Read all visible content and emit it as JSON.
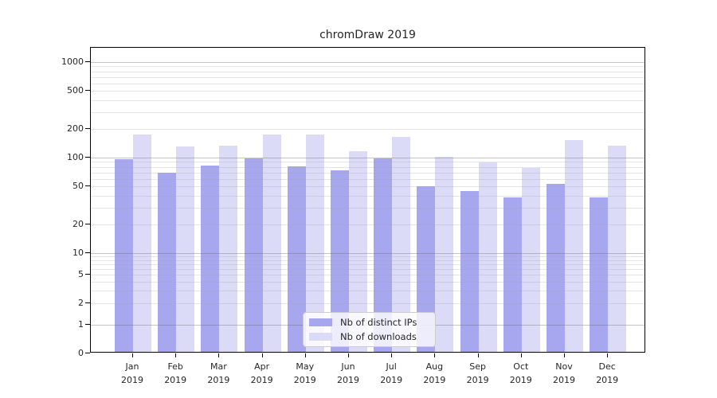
{
  "figure": {
    "background_color": "#ffffff",
    "text_color": "#262626",
    "axis_color": "#000000",
    "major_gridline_color": "#c6c6c6",
    "minor_gridline_color": "#e4e4e4"
  },
  "chart_data": {
    "type": "bar",
    "title": "chromDraw 2019",
    "xlabel": "",
    "ylabel": "",
    "categories": [
      "Jan 2019",
      "Feb 2019",
      "Mar 2019",
      "Apr 2019",
      "May 2019",
      "Jun 2019",
      "Jul 2019",
      "Aug 2019",
      "Sep 2019",
      "Oct 2019",
      "Nov 2019",
      "Dec 2019"
    ],
    "series": [
      {
        "name": "Nb of distinct IPs",
        "color": "#a7a7ef",
        "values": [
          93,
          67,
          80,
          95,
          78,
          71,
          95,
          48,
          43,
          37,
          51,
          37
        ]
      },
      {
        "name": "Nb of downloads",
        "color": "#dbdbf8",
        "values": [
          167,
          126,
          128,
          168,
          168,
          113,
          158,
          99,
          86,
          75,
          148,
          128
        ]
      }
    ],
    "y_axis": {
      "scale": "log-like",
      "tick_values": [
        0,
        1,
        2,
        5,
        10,
        20,
        50,
        100,
        200,
        500,
        1000
      ],
      "ylim": [
        0,
        1300
      ]
    },
    "grid": "horizontal major and minor gridlines drawn over bars",
    "legend_position": "inside bottom-center"
  }
}
